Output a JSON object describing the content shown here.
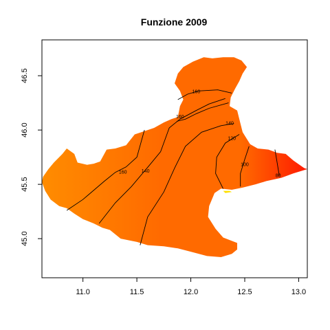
{
  "chart_data": {
    "type": "heatmap",
    "title": "Funzione 2009",
    "xlabel": "",
    "ylabel": "",
    "xlim": [
      10.62,
      13.08
    ],
    "ylim": [
      44.64,
      46.83
    ],
    "x_ticks": [
      "11.0",
      "11.5",
      "12.0",
      "12.5",
      "13.0"
    ],
    "x_tick_values": [
      11.0,
      11.5,
      12.0,
      12.5,
      13.0
    ],
    "y_ticks": [
      "45.0",
      "45.5",
      "46.0",
      "46.5"
    ],
    "y_tick_values": [
      45.0,
      45.5,
      46.0,
      46.5
    ],
    "grid": false,
    "legend": "none",
    "colors": {
      "low": "#FF1A00",
      "mid": "#FF6A00",
      "high": "#FF8C00",
      "lagoon": "#FFE000"
    },
    "color_gradient_direction": "east-to-west (values increase westward)",
    "region_outline": [
      [
        10.63,
        45.57
      ],
      [
        10.68,
        45.64
      ],
      [
        10.73,
        45.7
      ],
      [
        10.81,
        45.78
      ],
      [
        10.85,
        45.83
      ],
      [
        10.92,
        45.78
      ],
      [
        10.95,
        45.7
      ],
      [
        11.04,
        45.68
      ],
      [
        11.1,
        45.69
      ],
      [
        11.16,
        45.71
      ],
      [
        11.22,
        45.82
      ],
      [
        11.3,
        45.83
      ],
      [
        11.4,
        45.86
      ],
      [
        11.48,
        45.96
      ],
      [
        11.57,
        45.99
      ],
      [
        11.66,
        46.02
      ],
      [
        11.75,
        46.07
      ],
      [
        11.82,
        46.1
      ],
      [
        11.88,
        46.12
      ],
      [
        11.9,
        46.22
      ],
      [
        11.93,
        46.28
      ],
      [
        11.9,
        46.36
      ],
      [
        11.85,
        46.43
      ],
      [
        11.88,
        46.52
      ],
      [
        11.93,
        46.58
      ],
      [
        12.02,
        46.63
      ],
      [
        12.12,
        46.67
      ],
      [
        12.2,
        46.66
      ],
      [
        12.3,
        46.67
      ],
      [
        12.4,
        46.67
      ],
      [
        12.47,
        46.64
      ],
      [
        12.52,
        46.58
      ],
      [
        12.48,
        46.52
      ],
      [
        12.45,
        46.45
      ],
      [
        12.41,
        46.38
      ],
      [
        12.37,
        46.3
      ],
      [
        12.36,
        46.22
      ],
      [
        12.43,
        46.18
      ],
      [
        12.45,
        46.1
      ],
      [
        12.48,
        45.98
      ],
      [
        12.55,
        45.87
      ],
      [
        12.62,
        45.83
      ],
      [
        12.72,
        45.82
      ],
      [
        12.8,
        45.79
      ],
      [
        12.88,
        45.78
      ],
      [
        12.95,
        45.72
      ],
      [
        13.05,
        45.65
      ],
      [
        13.08,
        45.64
      ],
      [
        12.95,
        45.6
      ],
      [
        12.84,
        45.56
      ],
      [
        12.7,
        45.53
      ],
      [
        12.6,
        45.5
      ],
      [
        12.48,
        45.47
      ],
      [
        12.38,
        45.45
      ],
      [
        12.28,
        45.46
      ],
      [
        12.22,
        45.42
      ],
      [
        12.17,
        45.3
      ],
      [
        12.16,
        45.2
      ],
      [
        12.23,
        45.09
      ],
      [
        12.3,
        45.01
      ],
      [
        12.43,
        44.96
      ],
      [
        12.43,
        44.9
      ],
      [
        12.38,
        44.86
      ],
      [
        12.28,
        44.83
      ],
      [
        12.15,
        44.84
      ],
      [
        12.0,
        44.88
      ],
      [
        11.88,
        44.91
      ],
      [
        11.75,
        44.93
      ],
      [
        11.6,
        44.94
      ],
      [
        11.5,
        44.97
      ],
      [
        11.35,
        45.0
      ],
      [
        11.25,
        45.08
      ],
      [
        11.18,
        45.1
      ],
      [
        11.1,
        45.14
      ],
      [
        11.0,
        45.18
      ],
      [
        10.92,
        45.23
      ],
      [
        10.85,
        45.28
      ],
      [
        10.78,
        45.3
      ],
      [
        10.7,
        45.36
      ],
      [
        10.65,
        45.44
      ],
      [
        10.62,
        45.52
      ]
    ],
    "lagoon_patch": [
      [
        12.3,
        45.44
      ],
      [
        12.36,
        45.44
      ],
      [
        12.38,
        45.43
      ],
      [
        12.32,
        45.42
      ]
    ],
    "contours": [
      {
        "label": "160",
        "label_at": [
          11.37,
          45.61
        ],
        "points": [
          [
            10.85,
            45.26
          ],
          [
            11.0,
            45.36
          ],
          [
            11.2,
            45.53
          ],
          [
            11.3,
            45.61
          ],
          [
            11.4,
            45.66
          ],
          [
            11.5,
            45.75
          ],
          [
            11.57,
            46.0
          ]
        ]
      },
      {
        "label": "140",
        "label_at": [
          11.58,
          45.62
        ],
        "points": [
          [
            11.15,
            45.14
          ],
          [
            11.3,
            45.33
          ],
          [
            11.45,
            45.48
          ],
          [
            11.62,
            45.68
          ],
          [
            11.72,
            45.8
          ],
          [
            11.8,
            46.02
          ],
          [
            11.9,
            46.1
          ],
          [
            12.05,
            46.18
          ],
          [
            12.17,
            46.24
          ],
          [
            12.32,
            46.29
          ]
        ]
      },
      {
        "label": "160",
        "label_at": [
          11.9,
          46.12
        ],
        "points": [
          [
            11.87,
            46.08
          ],
          [
            11.95,
            46.1
          ],
          [
            12.05,
            46.15
          ],
          [
            12.17,
            46.2
          ],
          [
            12.35,
            46.25
          ]
        ]
      },
      {
        "label": "160",
        "label_at": [
          12.05,
          46.35
        ],
        "points": [
          [
            11.88,
            46.28
          ],
          [
            11.97,
            46.33
          ],
          [
            12.07,
            46.36
          ],
          [
            12.25,
            46.37
          ],
          [
            12.38,
            46.34
          ]
        ]
      },
      {
        "label": "140",
        "label_at": [
          12.36,
          46.06
        ],
        "points": [
          [
            11.53,
            44.94
          ],
          [
            11.6,
            45.2
          ],
          [
            11.75,
            45.43
          ],
          [
            11.85,
            45.65
          ],
          [
            11.95,
            45.85
          ],
          [
            12.1,
            45.98
          ],
          [
            12.28,
            46.04
          ],
          [
            12.4,
            46.06
          ]
        ]
      },
      {
        "label": "120",
        "label_at": [
          12.38,
          45.92
        ],
        "points": [
          [
            12.3,
            45.46
          ],
          [
            12.23,
            45.6
          ],
          [
            12.24,
            45.75
          ],
          [
            12.32,
            45.88
          ],
          [
            12.45,
            45.96
          ]
        ]
      },
      {
        "label": "100",
        "label_at": [
          12.5,
          45.68
        ],
        "points": [
          [
            12.46,
            45.48
          ],
          [
            12.46,
            45.6
          ],
          [
            12.5,
            45.73
          ],
          [
            12.54,
            45.85
          ]
        ]
      },
      {
        "label": "80",
        "label_at": [
          12.81,
          45.58
        ],
        "points": [
          [
            12.78,
            45.82
          ],
          [
            12.8,
            45.7
          ],
          [
            12.82,
            45.58
          ]
        ]
      }
    ]
  }
}
